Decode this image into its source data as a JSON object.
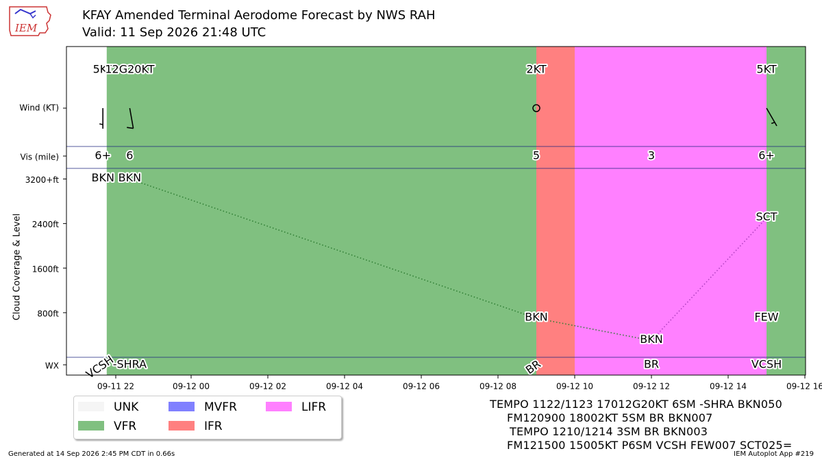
{
  "header": {
    "logo_text": "IEM",
    "title_line1": "KFAY Amended Terminal Aerodome Forecast by NWS RAH",
    "title_line2": "Valid: 11 Sep 2026 21:48 UTC"
  },
  "colors": {
    "UNK": "#f5f5f5",
    "VFR": "#80c080",
    "MVFR": "#8080ff",
    "IFR": "#ff8080",
    "LIFR": "#ff80ff",
    "separator": "#1a237e"
  },
  "chart_data": {
    "type": "timeline",
    "x_range_hours": [
      -1.0,
      16.0
    ],
    "x_origin_note": "hours after 09-12 00 UTC",
    "xticks": [
      {
        "hour": -2,
        "label": "09-11 22"
      },
      {
        "hour": 0,
        "label": "09-12 00"
      },
      {
        "hour": 2,
        "label": "09-12 02"
      },
      {
        "hour": 4,
        "label": "09-12 04"
      },
      {
        "hour": 6,
        "label": "09-12 06"
      },
      {
        "hour": 8,
        "label": "09-12 08"
      },
      {
        "hour": 10,
        "label": "09-12 10"
      },
      {
        "hour": 12,
        "label": "09-12 12"
      },
      {
        "hour": 14,
        "label": "09-12 14"
      },
      {
        "hour": 16,
        "label": "09-12 16"
      }
    ],
    "row_labels": {
      "wind": "Wind (KT)",
      "vis": "Vis (mile)",
      "wx": "WX",
      "cloud_axis": "Cloud Coverage & Level"
    },
    "cloud_ticks": [
      {
        "ft": 800,
        "label": "800ft"
      },
      {
        "ft": 1600,
        "label": "1600ft"
      },
      {
        "ft": 2400,
        "label": "2400ft"
      },
      {
        "ft": 3200,
        "label": "3200+ft"
      }
    ],
    "category_spans": [
      {
        "start": -2.2,
        "end": 9.0,
        "category": "VFR"
      },
      {
        "start": 9.0,
        "end": 10.0,
        "category": "IFR"
      },
      {
        "start": 10.0,
        "end": 15.0,
        "category": "LIFR"
      },
      {
        "start": 15.0,
        "end": 16.2,
        "category": "VFR"
      }
    ],
    "wind": [
      {
        "hour": -2.3,
        "label": "5KT",
        "dir": 180,
        "speed": 5
      },
      {
        "hour": -1.6,
        "label": "12G20KT",
        "dir": 170,
        "speed": 12
      },
      {
        "hour": 9.0,
        "label": "2KT",
        "dir": 180,
        "speed": 2
      },
      {
        "hour": 15.0,
        "label": "5KT",
        "dir": 150,
        "speed": 5
      }
    ],
    "visibility": [
      {
        "hour": -2.3,
        "label": "6+"
      },
      {
        "hour": -1.6,
        "label": "6"
      },
      {
        "hour": 9.0,
        "label": "5"
      },
      {
        "hour": 12.0,
        "label": "3"
      },
      {
        "hour": 15.0,
        "label": "6+"
      }
    ],
    "clouds": [
      {
        "hour": -2.3,
        "ft": 3200,
        "label": "BKN"
      },
      {
        "hour": -1.6,
        "ft": 3200,
        "label": "BKN"
      },
      {
        "hour": 9.0,
        "ft": 700,
        "label": "BKN"
      },
      {
        "hour": 12.0,
        "ft": 300,
        "label": "BKN"
      },
      {
        "hour": 15.0,
        "ft": 2500,
        "label": "SCT"
      },
      {
        "hour": 15.0,
        "ft": 700,
        "label": "FEW"
      }
    ],
    "cloud_lines": [
      {
        "color": "#2e7d32",
        "points": [
          [
            -1.6,
            3200
          ],
          [
            9.0,
            700
          ],
          [
            12.0,
            300
          ]
        ]
      },
      {
        "color": "#b040c0",
        "points": [
          [
            12.0,
            300
          ],
          [
            15.0,
            2500
          ]
        ]
      }
    ],
    "weather": [
      {
        "hour": -2.3,
        "label": "VCSH",
        "rotate": -35
      },
      {
        "hour": -1.6,
        "label": "-SHRA",
        "rotate": 0
      },
      {
        "hour": 9.0,
        "label": "BR",
        "rotate": -35
      },
      {
        "hour": 12.0,
        "label": "BR",
        "rotate": 0
      },
      {
        "hour": 15.0,
        "label": "VCSH",
        "rotate": 0
      }
    ]
  },
  "legend": {
    "items": [
      {
        "label": "UNK",
        "category": "UNK"
      },
      {
        "label": "VFR",
        "category": "VFR"
      },
      {
        "label": "MVFR",
        "category": "MVFR"
      },
      {
        "label": "IFR",
        "category": "IFR"
      },
      {
        "label": "LIFR",
        "category": "LIFR"
      }
    ]
  },
  "taf_text": [
    "TEMPO 1122/1123 17012G20KT 6SM -SHRA BKN050",
    "FM120900 18002KT 5SM BR BKN007",
    "TEMPO 1210/1214 3SM BR BKN003",
    "FM121500 15005KT P6SM VCSH FEW007 SCT025="
  ],
  "footer": {
    "generated": "Generated at 14 Sep 2026 2:45 PM CDT in 0.66s",
    "app": "IEM Autoplot App #219"
  }
}
